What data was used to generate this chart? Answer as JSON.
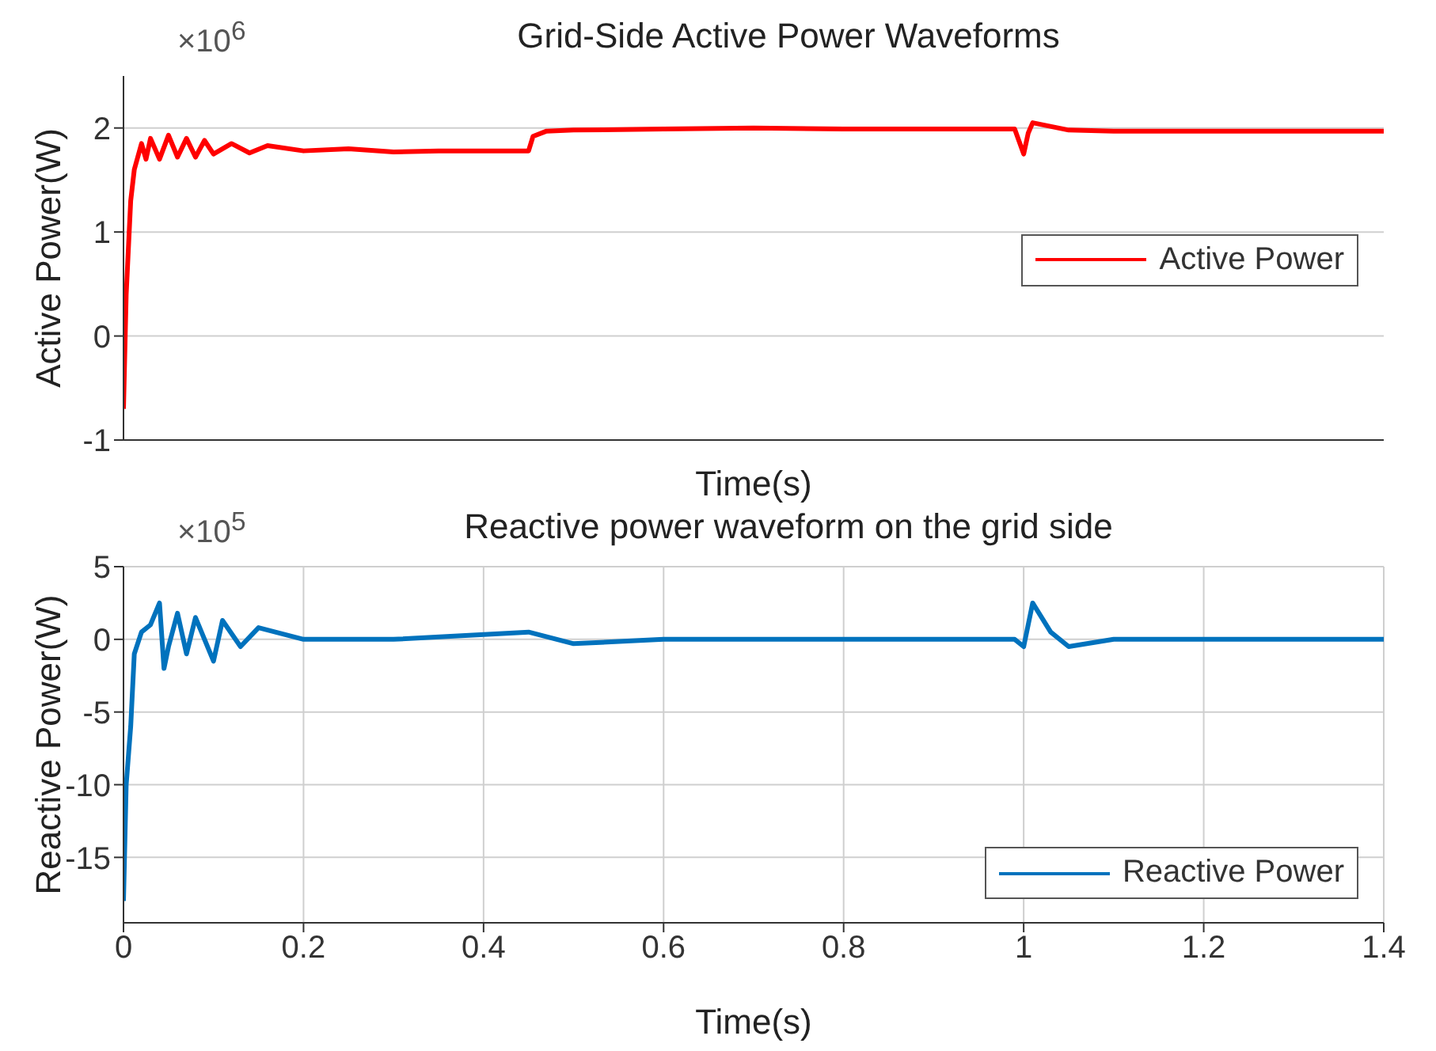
{
  "chart_data": [
    {
      "type": "line",
      "title": "Grid-Side Active Power Waveforms",
      "xlabel": "Time(s)",
      "ylabel": "Active Power(W)",
      "annotations": [
        "×10$^{6}$"
      ],
      "x": [
        0,
        0.003,
        0.008,
        0.012,
        0.02,
        0.025,
        0.03,
        0.04,
        0.05,
        0.06,
        0.07,
        0.08,
        0.09,
        0.1,
        0.12,
        0.14,
        0.16,
        0.2,
        0.25,
        0.3,
        0.35,
        0.4,
        0.45,
        0.455,
        0.47,
        0.5,
        0.6,
        0.7,
        0.8,
        0.9,
        0.99,
        1.0,
        1.005,
        1.01,
        1.05,
        1.1,
        1.2,
        1.3,
        1.4
      ],
      "series": [
        {
          "name": "Active Power",
          "color": "#ff0000",
          "values": [
            -0.7,
            0.4,
            1.3,
            1.6,
            1.85,
            1.7,
            1.9,
            1.7,
            1.93,
            1.72,
            1.9,
            1.72,
            1.88,
            1.75,
            1.85,
            1.76,
            1.83,
            1.78,
            1.8,
            1.77,
            1.78,
            1.78,
            1.78,
            1.92,
            1.97,
            1.98,
            1.99,
            2.0,
            1.99,
            1.99,
            1.99,
            1.75,
            1.95,
            2.05,
            1.98,
            1.97,
            1.97,
            1.97,
            1.97
          ]
        }
      ],
      "xlim": [
        0,
        1.4
      ],
      "xticks": [
        0,
        0.2,
        0.4,
        0.6,
        0.8,
        1,
        1.2,
        1.4
      ],
      "ylim": [
        -1,
        2.5
      ],
      "yticks": [
        -1,
        0,
        1,
        2
      ],
      "tick_labels": "y",
      "grid": true,
      "legend": "right"
    },
    {
      "type": "line",
      "title": "Reactive power waveform on the grid side",
      "xlabel": "Time(s)",
      "ylabel": "Reactive Power(W)",
      "annotations": [
        "×10$^{5}$"
      ],
      "x": [
        0,
        0.003,
        0.008,
        0.012,
        0.02,
        0.03,
        0.04,
        0.045,
        0.05,
        0.06,
        0.07,
        0.08,
        0.1,
        0.11,
        0.13,
        0.15,
        0.2,
        0.3,
        0.45,
        0.5,
        0.6,
        0.8,
        0.99,
        1.0,
        1.01,
        1.03,
        1.05,
        1.1,
        1.2,
        1.3,
        1.4
      ],
      "series": [
        {
          "name": "Reactive Power",
          "color": "#0072bd",
          "values": [
            -18,
            -10,
            -6,
            -1,
            0.5,
            1,
            2.5,
            -2,
            -0.5,
            1.8,
            -1,
            1.5,
            -1.5,
            1.3,
            -0.5,
            0.8,
            0,
            0,
            0.5,
            -0.3,
            0,
            0,
            0,
            -0.5,
            2.5,
            0.5,
            -0.5,
            0,
            0,
            0,
            0
          ]
        }
      ],
      "xlim": [
        0,
        1.4
      ],
      "xticks": [
        0,
        0.2,
        0.4,
        0.6,
        0.8,
        1,
        1.2,
        1.4
      ],
      "ylim": [
        -19.5,
        5
      ],
      "yticks": [
        -15,
        -10,
        -5,
        0,
        5
      ],
      "grid": true,
      "legend": "bottom right"
    }
  ]
}
